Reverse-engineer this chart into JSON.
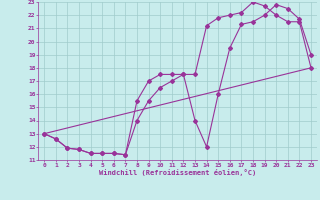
{
  "xlabel": "Windchill (Refroidissement éolien,°C)",
  "xlim": [
    -0.5,
    23.5
  ],
  "ylim": [
    11,
    23
  ],
  "xticks": [
    0,
    1,
    2,
    3,
    4,
    5,
    6,
    7,
    8,
    9,
    10,
    11,
    12,
    13,
    14,
    15,
    16,
    17,
    18,
    19,
    20,
    21,
    22,
    23
  ],
  "yticks": [
    11,
    12,
    13,
    14,
    15,
    16,
    17,
    18,
    19,
    20,
    21,
    22,
    23
  ],
  "bg_color": "#c8ecec",
  "grid_color": "#a0cccc",
  "line_color": "#993399",
  "line1_x": [
    0,
    1,
    2,
    3,
    4,
    5,
    6,
    7,
    8,
    9,
    10,
    11,
    12,
    13,
    14,
    15,
    16,
    17,
    18,
    19,
    20,
    21,
    22,
    23
  ],
  "line1_y": [
    13,
    12.6,
    11.9,
    11.8,
    11.5,
    11.5,
    11.5,
    11.4,
    15.5,
    17.0,
    17.5,
    17.5,
    17.5,
    17.5,
    21.2,
    21.8,
    22.0,
    22.2,
    23.0,
    22.7,
    22.0,
    21.5,
    21.5,
    18.0
  ],
  "line2_x": [
    0,
    1,
    2,
    3,
    4,
    5,
    6,
    7,
    8,
    9,
    10,
    11,
    12,
    13,
    14,
    15,
    16,
    17,
    18,
    19,
    20,
    21,
    22,
    23
  ],
  "line2_y": [
    13,
    12.6,
    11.9,
    11.8,
    11.5,
    11.5,
    11.5,
    11.4,
    14.0,
    15.5,
    16.5,
    17.0,
    17.5,
    14.0,
    12.0,
    16.0,
    19.5,
    21.3,
    21.5,
    22.0,
    22.8,
    22.5,
    21.7,
    19.0
  ],
  "line3_x": [
    0,
    23
  ],
  "line3_y": [
    13,
    18.0
  ],
  "marker": "D",
  "markersize": 2,
  "linewidth": 0.8
}
